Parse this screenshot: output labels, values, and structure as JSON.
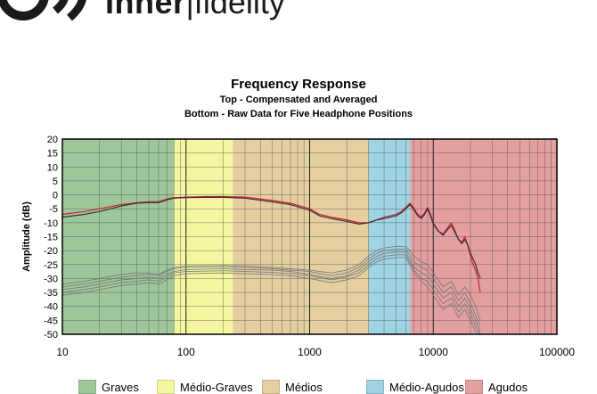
{
  "brand": {
    "name_bold": "Inner",
    "name_light": "fidelity"
  },
  "chart_data": {
    "type": "line",
    "title": "Frequency Response",
    "subtitle": [
      "Top -  Compensated and Averaged",
      "Bottom - Raw Data for Five Headphone Positions"
    ],
    "xlabel": "",
    "ylabel": "Amplitude (dB)",
    "xscale": "log",
    "xlim": [
      10,
      100000
    ],
    "ylim": [
      -50,
      20
    ],
    "x_ticks": [
      "10",
      "100",
      "1000",
      "10000",
      "100000"
    ],
    "y_ticks": [
      20,
      15,
      10,
      5,
      0,
      -5,
      -10,
      -15,
      -20,
      -25,
      -30,
      -35,
      -40,
      -45,
      -50
    ],
    "grid": true,
    "legend_position": "bottom",
    "bands": [
      {
        "name": "Graves",
        "from": 10,
        "to": 80,
        "color": "#9ec89b"
      },
      {
        "name": "Médio-Graves",
        "from": 80,
        "to": 240,
        "color": "#f4f7a0"
      },
      {
        "name": "Médios",
        "from": 240,
        "to": 3000,
        "color": "#e5cfa0"
      },
      {
        "name": "Médio-Agudos",
        "from": 3000,
        "to": 6500,
        "color": "#9ed4e4"
      },
      {
        "name": "Agudos",
        "from": 6500,
        "to": 100000,
        "color": "#e4a0a0"
      }
    ],
    "series": [
      {
        "color": "#d32020",
        "points": [
          [
            10,
            -7
          ],
          [
            15,
            -6
          ],
          [
            20,
            -5
          ],
          [
            30,
            -3.5
          ],
          [
            40,
            -2.8
          ],
          [
            50,
            -2.5
          ],
          [
            60,
            -2.4
          ],
          [
            65,
            -2
          ],
          [
            70,
            -1.5
          ],
          [
            80,
            -1
          ],
          [
            100,
            -0.8
          ],
          [
            150,
            -0.6
          ],
          [
            200,
            -0.6
          ],
          [
            300,
            -0.8
          ],
          [
            500,
            -2
          ],
          [
            700,
            -3
          ],
          [
            1000,
            -5
          ],
          [
            1200,
            -7
          ],
          [
            1500,
            -8
          ],
          [
            2000,
            -9
          ],
          [
            2500,
            -10
          ],
          [
            3000,
            -10
          ],
          [
            3500,
            -9
          ],
          [
            4000,
            -8
          ],
          [
            4500,
            -7.5
          ],
          [
            5000,
            -7
          ],
          [
            5500,
            -6
          ],
          [
            6000,
            -4.5
          ],
          [
            6500,
            -3
          ],
          [
            7000,
            -5
          ],
          [
            7500,
            -7
          ],
          [
            8000,
            -8
          ],
          [
            8500,
            -6.5
          ],
          [
            9000,
            -4.5
          ],
          [
            9500,
            -7
          ],
          [
            10000,
            -10
          ],
          [
            11000,
            -13
          ],
          [
            12000,
            -14
          ],
          [
            13000,
            -12
          ],
          [
            14000,
            -10
          ],
          [
            15000,
            -13
          ],
          [
            16000,
            -16
          ],
          [
            17000,
            -17
          ],
          [
            18000,
            -15
          ],
          [
            19000,
            -18
          ],
          [
            20000,
            -22
          ],
          [
            21000,
            -25
          ],
          [
            22000,
            -27
          ],
          [
            23000,
            -30
          ],
          [
            24000,
            -35
          ]
        ]
      },
      {
        "color": "#303040",
        "points": [
          [
            10,
            -8
          ],
          [
            15,
            -7
          ],
          [
            20,
            -6
          ],
          [
            30,
            -4
          ],
          [
            40,
            -3
          ],
          [
            50,
            -2.8
          ],
          [
            60,
            -2.8
          ],
          [
            65,
            -2.3
          ],
          [
            70,
            -1.8
          ],
          [
            80,
            -1.2
          ],
          [
            100,
            -1
          ],
          [
            150,
            -0.9
          ],
          [
            200,
            -0.9
          ],
          [
            300,
            -1.2
          ],
          [
            500,
            -2.5
          ],
          [
            700,
            -3.5
          ],
          [
            1000,
            -5.5
          ],
          [
            1200,
            -7.5
          ],
          [
            1500,
            -8.5
          ],
          [
            2000,
            -9.5
          ],
          [
            2500,
            -10.5
          ],
          [
            3000,
            -10
          ],
          [
            3500,
            -9
          ],
          [
            4000,
            -8.5
          ],
          [
            4500,
            -8
          ],
          [
            5000,
            -7.5
          ],
          [
            5500,
            -6.5
          ],
          [
            6000,
            -5
          ],
          [
            6500,
            -3.5
          ],
          [
            7000,
            -5.5
          ],
          [
            7500,
            -7.5
          ],
          [
            8000,
            -8.5
          ],
          [
            8500,
            -7
          ],
          [
            9000,
            -5
          ],
          [
            9500,
            -7.5
          ],
          [
            10000,
            -10.5
          ],
          [
            11000,
            -13
          ],
          [
            12000,
            -14.5
          ],
          [
            13000,
            -12.5
          ],
          [
            14000,
            -11
          ],
          [
            15000,
            -13.5
          ],
          [
            16000,
            -16
          ],
          [
            17000,
            -17.5
          ],
          [
            18000,
            -16
          ],
          [
            19000,
            -18
          ],
          [
            20000,
            -21
          ],
          [
            21000,
            -23
          ],
          [
            22000,
            -25
          ],
          [
            23000,
            -28
          ],
          [
            24000,
            -30
          ]
        ]
      },
      {
        "color": "#7a7a7a",
        "points": [
          [
            10,
            -32
          ],
          [
            15,
            -31
          ],
          [
            20,
            -30
          ],
          [
            30,
            -28.5
          ],
          [
            40,
            -28
          ],
          [
            50,
            -28
          ],
          [
            60,
            -28.5
          ],
          [
            70,
            -27
          ],
          [
            80,
            -26
          ],
          [
            100,
            -25.5
          ],
          [
            200,
            -25.3
          ],
          [
            300,
            -25.5
          ],
          [
            500,
            -26
          ],
          [
            700,
            -26.5
          ],
          [
            1000,
            -27
          ],
          [
            1500,
            -28
          ],
          [
            2000,
            -27
          ],
          [
            2500,
            -25
          ],
          [
            3000,
            -22
          ],
          [
            3500,
            -20
          ],
          [
            4000,
            -19
          ],
          [
            5000,
            -18.5
          ],
          [
            6000,
            -18.5
          ],
          [
            7000,
            -22
          ],
          [
            8000,
            -24
          ],
          [
            9000,
            -25
          ],
          [
            10000,
            -28
          ],
          [
            12000,
            -33
          ],
          [
            14000,
            -31
          ],
          [
            16000,
            -36
          ],
          [
            18000,
            -33
          ],
          [
            20000,
            -36
          ],
          [
            22000,
            -40
          ],
          [
            24000,
            -45
          ]
        ]
      },
      {
        "color": "#7a7a7a",
        "points": [
          [
            10,
            -33
          ],
          [
            15,
            -32
          ],
          [
            20,
            -31
          ],
          [
            30,
            -29.5
          ],
          [
            40,
            -29
          ],
          [
            50,
            -28.5
          ],
          [
            60,
            -29
          ],
          [
            70,
            -27.5
          ],
          [
            80,
            -26.5
          ],
          [
            100,
            -26
          ],
          [
            200,
            -25.8
          ],
          [
            300,
            -26
          ],
          [
            500,
            -26.5
          ],
          [
            700,
            -27
          ],
          [
            1000,
            -27.5
          ],
          [
            1500,
            -29
          ],
          [
            2000,
            -28
          ],
          [
            2500,
            -26
          ],
          [
            3000,
            -23
          ],
          [
            3500,
            -21
          ],
          [
            4000,
            -20
          ],
          [
            5000,
            -19.5
          ],
          [
            6000,
            -19.5
          ],
          [
            7000,
            -24
          ],
          [
            8000,
            -26
          ],
          [
            9000,
            -27
          ],
          [
            10000,
            -30
          ],
          [
            12000,
            -35
          ],
          [
            14000,
            -33
          ],
          [
            16000,
            -38
          ],
          [
            18000,
            -35
          ],
          [
            20000,
            -39
          ],
          [
            22000,
            -43
          ],
          [
            24000,
            -47
          ]
        ]
      },
      {
        "color": "#7a7a7a",
        "points": [
          [
            10,
            -34
          ],
          [
            15,
            -33
          ],
          [
            20,
            -32
          ],
          [
            30,
            -30.5
          ],
          [
            40,
            -30
          ],
          [
            50,
            -29.5
          ],
          [
            60,
            -30
          ],
          [
            70,
            -28.5
          ],
          [
            80,
            -27.5
          ],
          [
            100,
            -26.8
          ],
          [
            200,
            -26.5
          ],
          [
            300,
            -26.8
          ],
          [
            500,
            -27
          ],
          [
            700,
            -27.5
          ],
          [
            1000,
            -28.5
          ],
          [
            1500,
            -30
          ],
          [
            2000,
            -29
          ],
          [
            2500,
            -27
          ],
          [
            3000,
            -24
          ],
          [
            3500,
            -22
          ],
          [
            4000,
            -21
          ],
          [
            5000,
            -20.5
          ],
          [
            6000,
            -20.5
          ],
          [
            7000,
            -26
          ],
          [
            8000,
            -28
          ],
          [
            9000,
            -29
          ],
          [
            10000,
            -32
          ],
          [
            12000,
            -37
          ],
          [
            14000,
            -35
          ],
          [
            16000,
            -40
          ],
          [
            18000,
            -37
          ],
          [
            20000,
            -41
          ],
          [
            22000,
            -45
          ],
          [
            24000,
            -49
          ]
        ]
      },
      {
        "color": "#7a7a7a",
        "points": [
          [
            10,
            -35
          ],
          [
            15,
            -34
          ],
          [
            20,
            -33
          ],
          [
            30,
            -31.5
          ],
          [
            40,
            -31
          ],
          [
            50,
            -30.5
          ],
          [
            60,
            -31
          ],
          [
            70,
            -29.5
          ],
          [
            80,
            -28
          ],
          [
            100,
            -27.5
          ],
          [
            200,
            -27.2
          ],
          [
            300,
            -27.5
          ],
          [
            500,
            -27.8
          ],
          [
            700,
            -28.2
          ],
          [
            1000,
            -29
          ],
          [
            1500,
            -30.5
          ],
          [
            2000,
            -29.5
          ],
          [
            2500,
            -28
          ],
          [
            3000,
            -25
          ],
          [
            3500,
            -23
          ],
          [
            4000,
            -22
          ],
          [
            5000,
            -21.5
          ],
          [
            6000,
            -21.5
          ],
          [
            7000,
            -27
          ],
          [
            8000,
            -30
          ],
          [
            9000,
            -31
          ],
          [
            10000,
            -34
          ],
          [
            12000,
            -39
          ],
          [
            14000,
            -37
          ],
          [
            16000,
            -42
          ],
          [
            18000,
            -39
          ],
          [
            20000,
            -43
          ],
          [
            22000,
            -47
          ],
          [
            24000,
            -50
          ]
        ]
      },
      {
        "color": "#7a7a7a",
        "points": [
          [
            10,
            -36
          ],
          [
            15,
            -35
          ],
          [
            20,
            -34
          ],
          [
            30,
            -32.5
          ],
          [
            40,
            -32
          ],
          [
            50,
            -31.5
          ],
          [
            60,
            -32
          ],
          [
            70,
            -30.5
          ],
          [
            80,
            -29
          ],
          [
            100,
            -28.3
          ],
          [
            200,
            -28
          ],
          [
            300,
            -28.3
          ],
          [
            500,
            -28.6
          ],
          [
            700,
            -29
          ],
          [
            1000,
            -30
          ],
          [
            1500,
            -31.5
          ],
          [
            2000,
            -30.5
          ],
          [
            2500,
            -29
          ],
          [
            3000,
            -26
          ],
          [
            3500,
            -24
          ],
          [
            4000,
            -23
          ],
          [
            5000,
            -22.5
          ],
          [
            6000,
            -22.5
          ],
          [
            7000,
            -28
          ],
          [
            8000,
            -31
          ],
          [
            9000,
            -33
          ],
          [
            10000,
            -36
          ],
          [
            12000,
            -41
          ],
          [
            14000,
            -39
          ],
          [
            16000,
            -44
          ],
          [
            18000,
            -41
          ],
          [
            20000,
            -45
          ],
          [
            22000,
            -49
          ],
          [
            24000,
            -50
          ]
        ]
      }
    ]
  }
}
